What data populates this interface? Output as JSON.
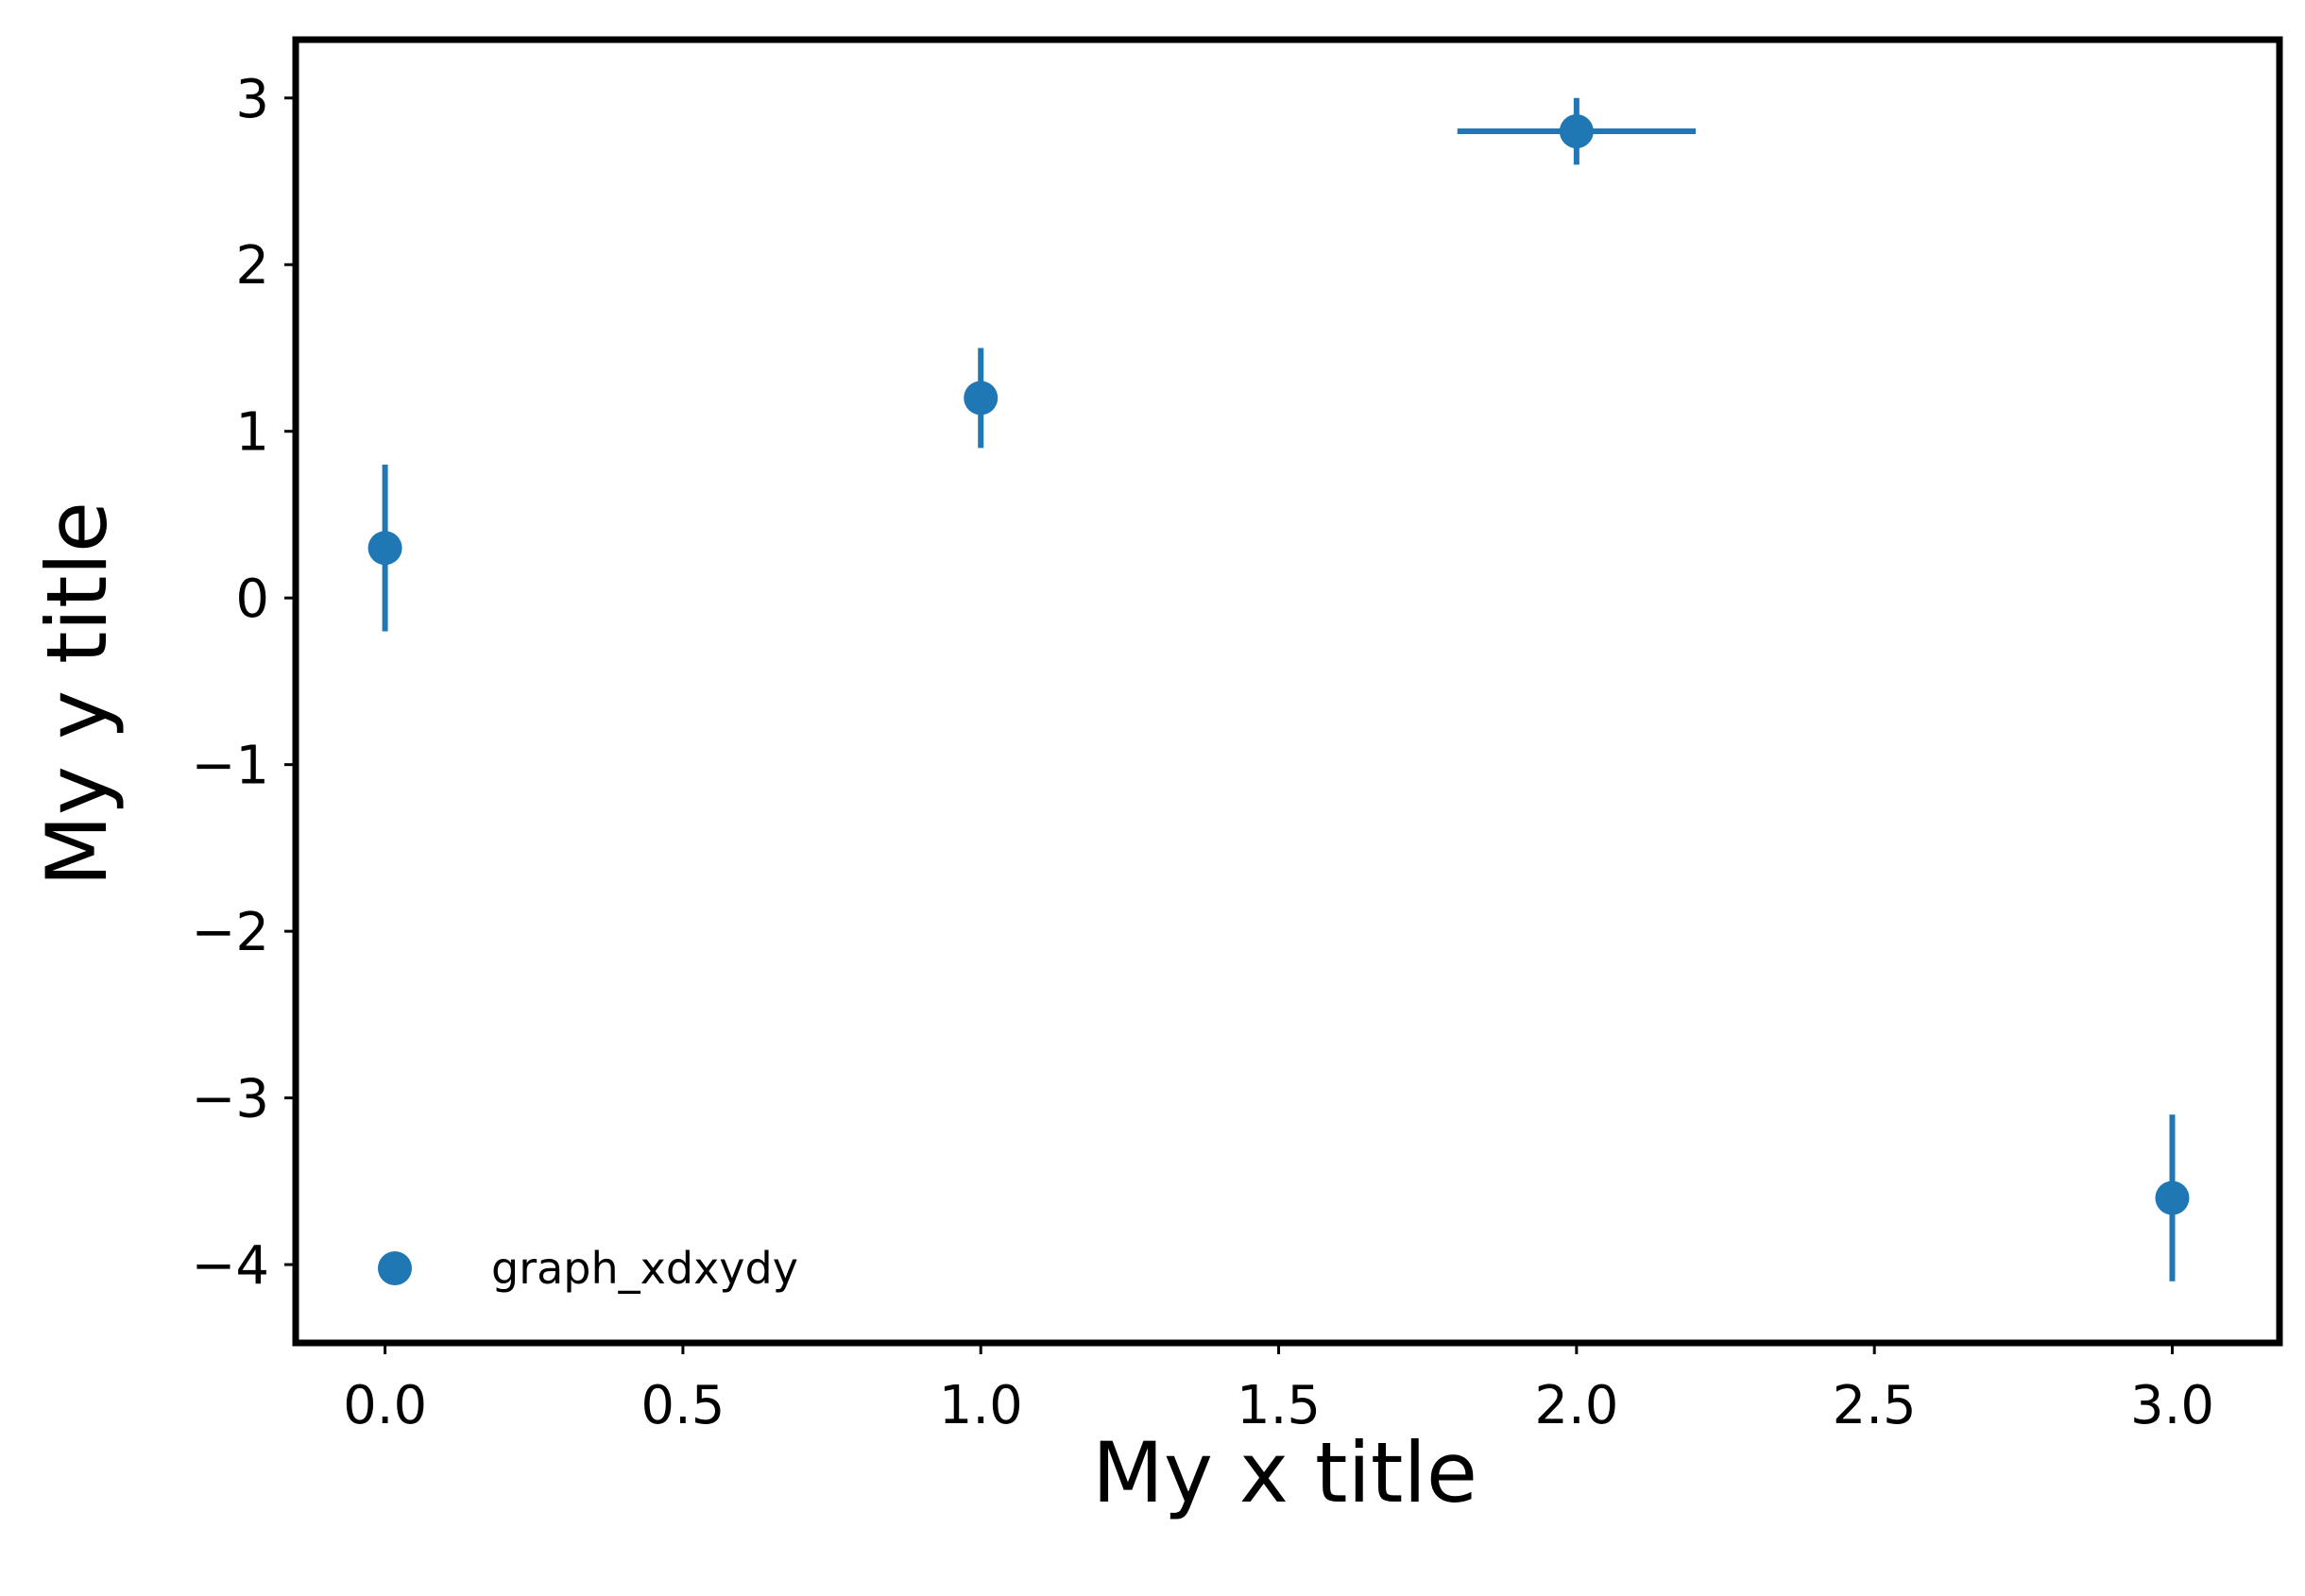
{
  "chart_data": {
    "type": "scatter",
    "title": "",
    "xlabel": "My x title",
    "ylabel": "My y title",
    "xlim": [
      -0.15,
      3.18
    ],
    "ylim": [
      -4.47,
      3.35
    ],
    "xticks": [
      0.0,
      0.5,
      1.0,
      1.5,
      2.0,
      2.5,
      3.0
    ],
    "xtick_labels": [
      "0.0",
      "0.5",
      "1.0",
      "1.5",
      "2.0",
      "2.5",
      "3.0"
    ],
    "yticks": [
      -4,
      -3,
      -2,
      -1,
      0,
      1,
      2,
      3
    ],
    "ytick_labels": [
      "−4",
      "−3",
      "−2",
      "−1",
      "0",
      "1",
      "2",
      "3"
    ],
    "grid": false,
    "legend_position": "lower-left",
    "series": [
      {
        "name": "graph_xdxydy",
        "color": "#1f77b4",
        "marker": "circle",
        "points": [
          {
            "x": 0.0,
            "y": 0.3,
            "dx": 0.0,
            "dy": 0.5
          },
          {
            "x": 1.0,
            "y": 1.2,
            "dx": 0.0,
            "dy": 0.3
          },
          {
            "x": 2.0,
            "y": 2.8,
            "dx": 0.2,
            "dy": 0.2
          },
          {
            "x": 3.0,
            "y": -3.6,
            "dx": 0.0,
            "dy": 0.5
          }
        ]
      }
    ]
  }
}
